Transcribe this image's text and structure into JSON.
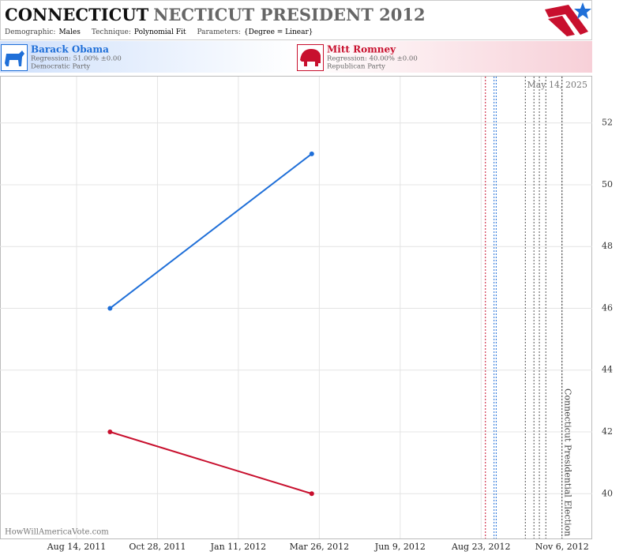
{
  "chart_data": {
    "type": "line",
    "title_main": "CONNECTICUT",
    "title_rest": "NECTICUT PRESIDENT 2012",
    "filters": [
      {
        "label": "Demographic:",
        "value": "Males"
      },
      {
        "label": "Technique:",
        "value": "Polynomial Fit"
      },
      {
        "label": "Parameters:",
        "value": "{Degree = Linear}"
      }
    ],
    "date_stamp": "May 14, 2025",
    "watermark": "HowWillAmericaVote.com",
    "x": [
      "2011-09-14",
      "2012-03-19"
    ],
    "series": [
      {
        "name": "Barack Obama",
        "color": "#1f6fd8",
        "regression": "Regression: 51.00% ±0.00",
        "party": "Democratic Party",
        "values": [
          46,
          51
        ]
      },
      {
        "name": "Mitt Romney",
        "color": "#c8102e",
        "regression": "Regression: 40.00% ±0.00",
        "party": "Republican Party",
        "values": [
          42,
          40
        ]
      }
    ],
    "xlim": [
      "2011-06-04",
      "2012-12-04"
    ],
    "xticks": [
      {
        "value": "2011-08-14",
        "label": "Aug 14, 2011"
      },
      {
        "value": "2011-10-28",
        "label": "Oct 28, 2011"
      },
      {
        "value": "2012-01-11",
        "label": "Jan 11, 2012"
      },
      {
        "value": "2012-03-26",
        "label": "Mar 26, 2012"
      },
      {
        "value": "2012-06-09",
        "label": "Jun 9, 2012"
      },
      {
        "value": "2012-08-23",
        "label": "Aug 23, 2012"
      },
      {
        "value": "2012-11-06",
        "label": "Nov 6, 2012"
      }
    ],
    "ylim": [
      38.55,
      53.5
    ],
    "yticks": [
      40,
      42,
      44,
      46,
      48,
      50,
      52
    ],
    "grid": true,
    "markers": [
      {
        "x": "2012-08-27",
        "color": "#c8102e"
      },
      {
        "x": "2012-09-04",
        "color": "#1f6fd8"
      },
      {
        "x": "2012-09-06",
        "color": "#1f6fd8"
      },
      {
        "x": "2012-10-03",
        "color": "#555555"
      },
      {
        "x": "2012-10-11",
        "color": "#555555"
      },
      {
        "x": "2012-10-16",
        "color": "#555555"
      },
      {
        "x": "2012-10-22",
        "color": "#555555"
      }
    ],
    "election": {
      "x": "2012-11-06",
      "label": "Connecticut Presidential Election"
    }
  }
}
